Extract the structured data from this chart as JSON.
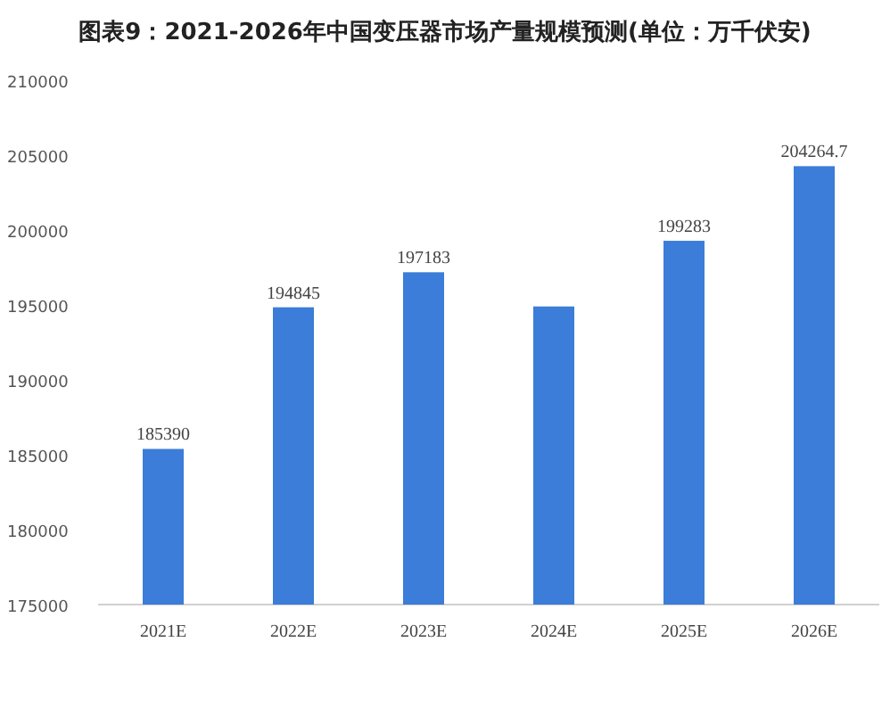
{
  "chart_data": {
    "type": "bar",
    "title": "图表9：2021-2026年中国变压器市场产量规模预测(单位：万千伏安)",
    "categories": [
      "2021E",
      "2022E",
      "2023E",
      "2024E",
      "2025E",
      "2026E"
    ],
    "values": [
      185390,
      194845,
      197183,
      194900,
      199283,
      204264.7
    ],
    "value_labels": [
      "185390",
      "194845",
      "197183",
      null,
      "199283",
      "204264.7"
    ],
    "color": "#3b7dd8",
    "ylim": [
      175000,
      210000
    ],
    "yticks": [
      175000,
      180000,
      185000,
      190000,
      195000,
      200000,
      205000,
      210000
    ],
    "grid": false
  }
}
